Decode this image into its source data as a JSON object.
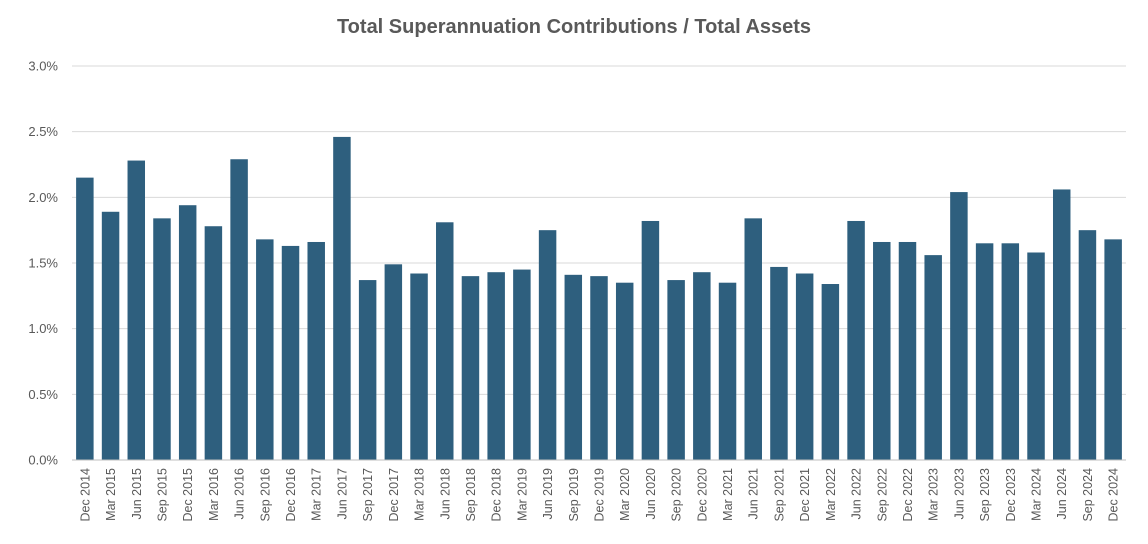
{
  "chart_data": {
    "type": "bar",
    "title": "Total Superannuation Contributions / Total Assets",
    "xlabel": "",
    "ylabel": "",
    "ylim": [
      0,
      3.0
    ],
    "yticks": [
      0.0,
      0.5,
      1.0,
      1.5,
      2.0,
      2.5,
      3.0
    ],
    "ytick_labels": [
      "0.0%",
      "0.5%",
      "1.0%",
      "1.5%",
      "2.0%",
      "2.5%",
      "3.0%"
    ],
    "grid": true,
    "legend": "none",
    "bar_color": "#2e5f7e",
    "categories": [
      "Dec 2014",
      "Mar 2015",
      "Jun 2015",
      "Sep 2015",
      "Dec 2015",
      "Mar 2016",
      "Jun 2016",
      "Sep 2016",
      "Dec 2016",
      "Mar 2017",
      "Jun 2017",
      "Sep 2017",
      "Dec 2017",
      "Mar 2018",
      "Jun 2018",
      "Sep 2018",
      "Dec 2018",
      "Mar 2019",
      "Jun 2019",
      "Sep 2019",
      "Dec 2019",
      "Mar 2020",
      "Jun 2020",
      "Sep 2020",
      "Dec 2020",
      "Mar 2021",
      "Jun 2021",
      "Sep 2021",
      "Dec 2021",
      "Mar 2022",
      "Jun 2022",
      "Sep 2022",
      "Dec 2022",
      "Mar 2023",
      "Jun 2023",
      "Sep 2023",
      "Dec 2023",
      "Mar 2024",
      "Jun 2024",
      "Sep 2024",
      "Dec 2024"
    ],
    "values": [
      2.15,
      1.89,
      2.28,
      1.84,
      1.94,
      1.78,
      2.29,
      1.68,
      1.63,
      1.66,
      2.46,
      1.37,
      1.49,
      1.42,
      1.81,
      1.4,
      1.43,
      1.45,
      1.75,
      1.41,
      1.4,
      1.35,
      1.82,
      1.37,
      1.43,
      1.35,
      1.84,
      1.47,
      1.42,
      1.34,
      1.82,
      1.66,
      1.66,
      1.56,
      2.04,
      1.65,
      1.65,
      1.58,
      2.06,
      1.75,
      1.68
    ]
  }
}
